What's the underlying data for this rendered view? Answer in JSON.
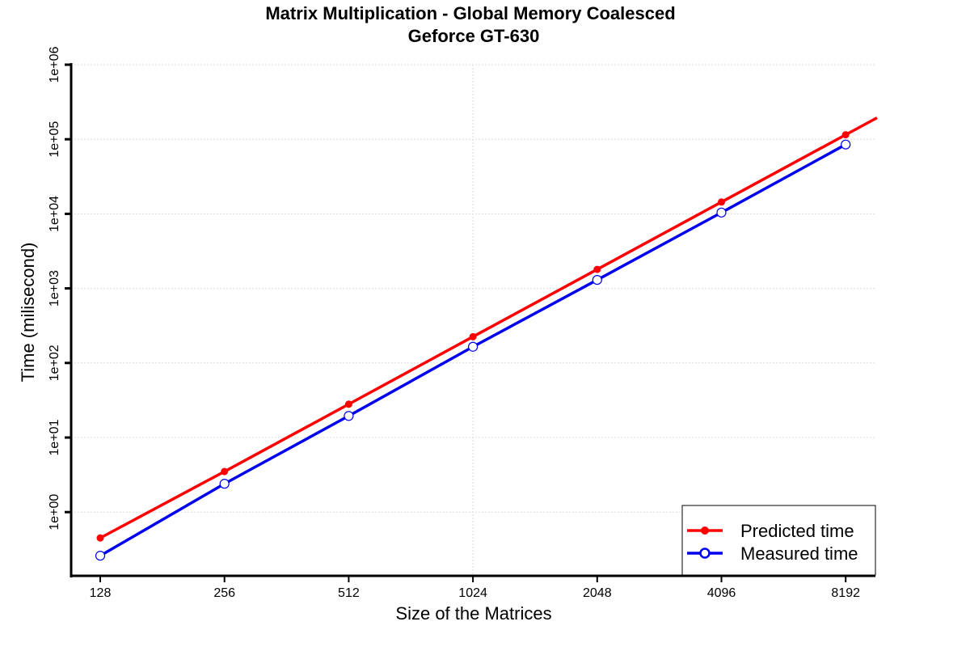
{
  "chart_data": {
    "type": "line",
    "title": "Matrix Multiplication - Global Memory Coalesced",
    "subtitle": "Geforce GT-630",
    "xlabel": "Size of the Matrices",
    "ylabel": "Time (milisecond)",
    "x_scale": "log2",
    "y_scale": "log10",
    "categories": [
      "128",
      "256",
      "512",
      "1024",
      "2048",
      "4096",
      "8192"
    ],
    "x": [
      128,
      256,
      512,
      1024,
      2048,
      4096,
      8192
    ],
    "y_ticks": [
      "1e+00",
      "1e+01",
      "1e+02",
      "1e+03",
      "1e+04",
      "1e+05",
      "1e+06"
    ],
    "ylim": [
      0.1,
      1000000
    ],
    "grid": true,
    "legend_position": "bottom-right",
    "series": [
      {
        "name": "Predicted time",
        "color": "#ff0000",
        "marker": "filled-circle",
        "values": [
          0.45,
          3.5,
          28,
          225,
          1800,
          14400,
          115000
        ],
        "extends_to_edge": true
      },
      {
        "name": "Measured time",
        "color": "#0000ee",
        "marker": "open-circle",
        "values": [
          0.26,
          2.4,
          19.5,
          165,
          1300,
          10400,
          85000
        ],
        "extends_to_edge": false
      }
    ]
  }
}
